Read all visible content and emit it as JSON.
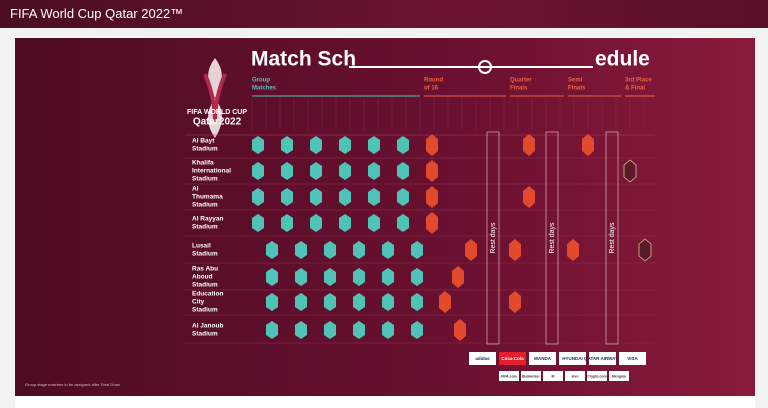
{
  "page": {
    "title": "FIFA World Cup Qatar 2022™"
  },
  "poster": {
    "logo_lines": [
      "FIFA WORLD CUP",
      "Qatar2022"
    ],
    "heading_left": "Match Sch",
    "heading_right": "edule",
    "stages": [
      [
        "Group",
        "Matches"
      ],
      [
        "Round",
        "of 16"
      ],
      [
        "Quarter",
        "Finals"
      ],
      [
        "Semi",
        "Finals"
      ],
      [
        "3rd Place",
        "& Final"
      ]
    ],
    "stadiums": [
      [
        "Al Bayt",
        "Stadium"
      ],
      [
        "Khalifa",
        "International",
        "Stadium"
      ],
      [
        "Al",
        "Thumama",
        "Stadium"
      ],
      [
        "Al Rayyan",
        "Stadium"
      ],
      [
        "Lusail",
        "Stadium"
      ],
      [
        "Ras Abu",
        "Aboud",
        "Stadium"
      ],
      [
        "Education",
        "City",
        "Stadium"
      ],
      [
        "Al Janoub",
        "Stadium"
      ]
    ],
    "rest_days": "Rest days",
    "note": "Group stage matches to be assigned after Final Draw",
    "sponsors": [
      "adidas",
      "Coca-Cola",
      "WANDA",
      "HYUNDAI",
      "QATAR AIRWAYS",
      "VISA"
    ],
    "sponsors2": [
      "FIFA.com",
      "Budweiser",
      "M",
      "vivo",
      "Crypto.com",
      "Mengniu"
    ]
  }
}
